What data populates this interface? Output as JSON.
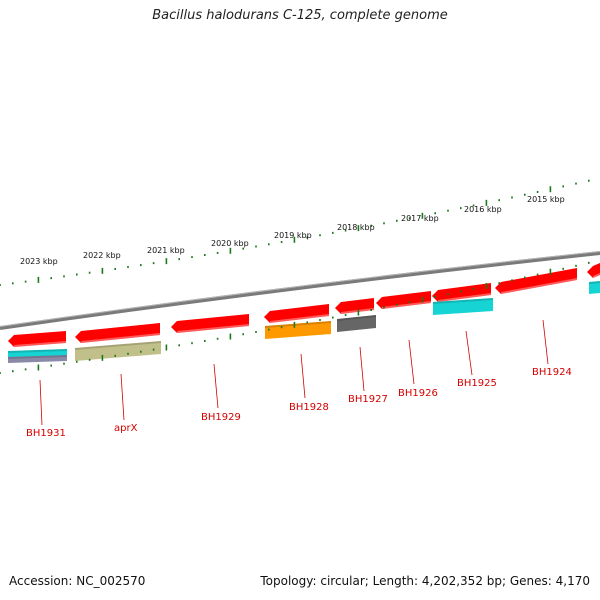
{
  "title": "Bacillus halodurans C-125, complete genome",
  "footer": {
    "accession": "Accession: NC_002570",
    "stats": "Topology: circular; Length: 4,202,352 bp; Genes: 4,170"
  },
  "colors": {
    "backbone": "#7a7a7a",
    "ticks": "#1a7a1a",
    "gene_label": "#d40000",
    "red_feature": "#ff0000",
    "cyan_feature": "#16d4d4",
    "olive_feature": "#c2c08a",
    "orange_feature": "#ff9900",
    "gray_feature": "#666666"
  },
  "scale_labels": [
    "2023 kbp",
    "2022 kbp",
    "2021 kbp",
    "2020 kbp",
    "2019 kbp",
    "2018 kbp",
    "2017 kbp",
    "2016 kbp",
    "2015 kbp"
  ],
  "genes": [
    "BH1931",
    "aprX",
    "BH1929",
    "BH1928",
    "BH1927",
    "BH1926",
    "BH1925",
    "BH1924"
  ]
}
